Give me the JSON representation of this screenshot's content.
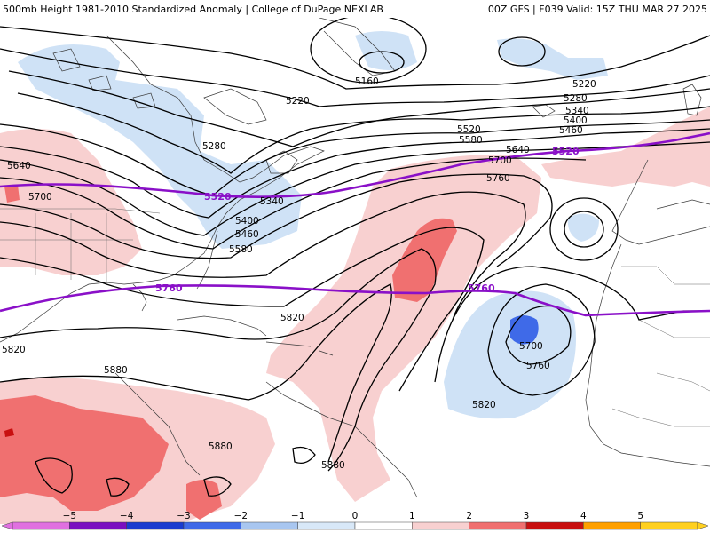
{
  "header": {
    "left": "500mb Height 1981-2010 Standardized Anomaly | College of DuPage NEXLAB",
    "right": "00Z GFS | F039 Valid: 15Z THU MAR 27 2025"
  },
  "contour_labels": [
    "5160",
    "5220",
    "5280",
    "5340",
    "5400",
    "5460",
    "5520",
    "5580",
    "5640",
    "5700",
    "5760",
    "5820",
    "5880"
  ],
  "highlighted_contours": [
    "5520",
    "5760"
  ],
  "colorbar": {
    "ticks": [
      "−5",
      "−4",
      "−3",
      "−2",
      "−1",
      "0",
      "1",
      "2",
      "3",
      "4",
      "5"
    ],
    "colors": [
      "#e070e0",
      "#7a10c0",
      "#1a3ccf",
      "#3f6ae8",
      "#a8c6f0",
      "#d8e8f8",
      "#ffffff",
      "#f8d0d0",
      "#f07070",
      "#c81010",
      "#ffa000",
      "#ffd020"
    ]
  },
  "map_label_texts": {
    "l5160": "5160",
    "l5220a": "5220",
    "l5220b": "5220",
    "l5280a": "5280",
    "l5280b": "5280",
    "l5340a": "5340",
    "l5340b": "5340",
    "l5400a": "5400",
    "l5400b": "5400",
    "l5460a": "5460",
    "l5460b": "5460",
    "l5520": "5520",
    "l5580a": "5580",
    "l5580b": "5580",
    "l5640a": "5640",
    "l5640b": "5640",
    "l5700a": "5700",
    "l5700b": "5700",
    "l5700c": "5700",
    "l5760a": "5760",
    "l5760b": "5760",
    "l5820a": "5820",
    "l5820b": "5820",
    "l5820c": "5820",
    "l5880a": "5880",
    "l5880b": "5880",
    "l5880c": "5880",
    "h5520a": "5520",
    "h5520b": "5520",
    "h5760a": "5760",
    "h5760b": "5760"
  }
}
